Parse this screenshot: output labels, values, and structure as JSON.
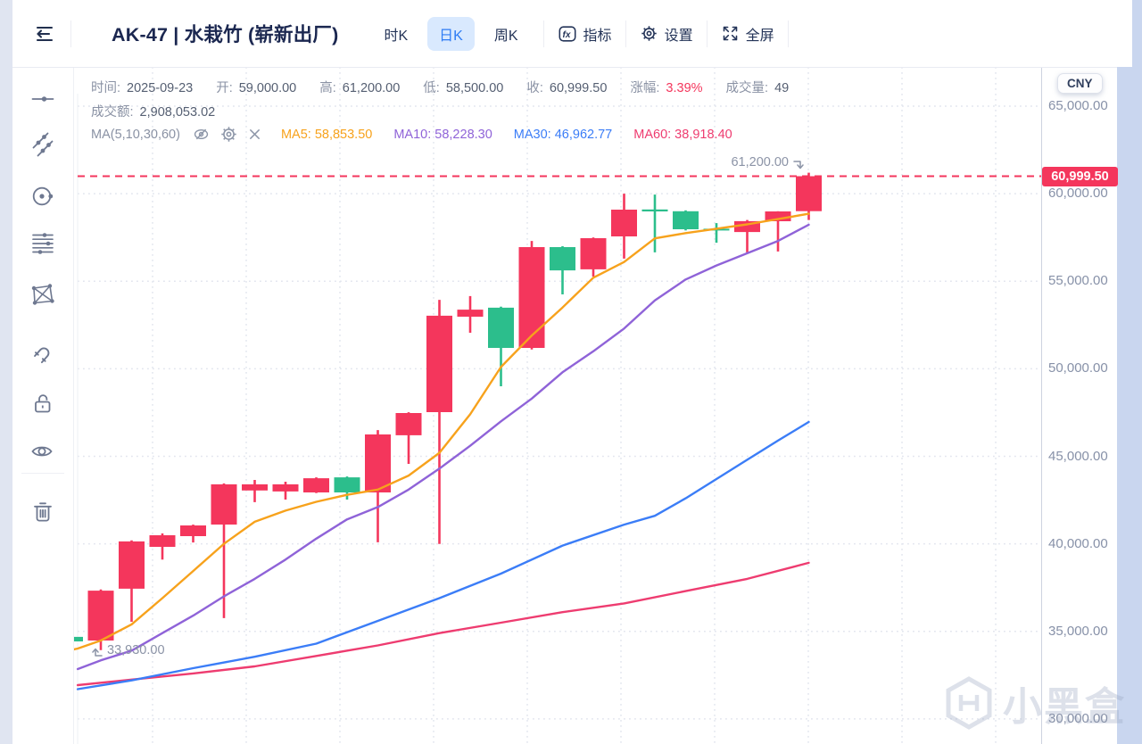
{
  "header": {
    "title": "AK-47 | 水栽竹 (崭新出厂)",
    "tabs": [
      {
        "name": "tab-hour-k",
        "label": "时K",
        "active": false
      },
      {
        "name": "tab-day-k",
        "label": "日K",
        "active": true
      },
      {
        "name": "tab-week-k",
        "label": "周K",
        "active": false
      }
    ],
    "actions": [
      {
        "name": "indicator-button",
        "icon": "fx-indicator-icon",
        "label": "指标"
      },
      {
        "name": "settings-button",
        "icon": "gear-icon",
        "label": "设置"
      },
      {
        "name": "fullscreen-button",
        "icon": "fullscreen-icon",
        "label": "全屏"
      }
    ]
  },
  "info_bar": {
    "row1": [
      {
        "label": "时间:",
        "value": "2025-09-23"
      },
      {
        "label": "开:",
        "value": "59,000.00"
      },
      {
        "label": "高:",
        "value": "61,200.00"
      },
      {
        "label": "低:",
        "value": "58,500.00"
      },
      {
        "label": "收:",
        "value": "60,999.50"
      },
      {
        "label": "涨幅:",
        "value": "3.39%",
        "color": "#f4365c"
      },
      {
        "label": "成交量:",
        "value": "49"
      }
    ],
    "row2": [
      {
        "label": "成交额:",
        "value": "2,908,053.02"
      }
    ]
  },
  "ma_bar": {
    "label": "MA(5,10,30,60)",
    "icons": [
      "eye-off-icon",
      "gear-icon",
      "close-icon"
    ],
    "items": [
      {
        "label": "MA5:",
        "value": "58,853.50",
        "color": "#f7a21c"
      },
      {
        "label": "MA10:",
        "value": "58,228.30",
        "color": "#8f63d8"
      },
      {
        "label": "MA30:",
        "value": "46,962.77",
        "color": "#3b7df7"
      },
      {
        "label": "MA60:",
        "value": "38,918.40",
        "color": "#ee3c70"
      }
    ]
  },
  "sidebar": {
    "tools": [
      "horizontal-line-tool",
      "cross-line-tool",
      "circle-tool",
      "fib-retracement-tool",
      "xabcd-pattern-tool",
      "magnet-tool",
      "unlock-tool",
      "visibility-tool",
      "delete-tool"
    ]
  },
  "axis": {
    "currency_label": "CNY",
    "price_tag": {
      "label": "60,999.50",
      "color": "#f4365c"
    }
  },
  "annotations": {
    "high_label": "61,200.00",
    "low_label": "33,930.00"
  },
  "watermark_text": "小黑盒",
  "chart_data": {
    "type": "candlestick",
    "title": "AK-47 | 水栽竹 (崭新出厂)",
    "interval": "日K",
    "currency": "CNY",
    "up_color": "#f4365c",
    "down_color": "#2cbe8c",
    "ylim": [
      28800,
      67200
    ],
    "grid": true,
    "y_ticks": [
      {
        "value": 65000,
        "label": "65,000.00"
      },
      {
        "value": 60000,
        "label": "60,000.00"
      },
      {
        "value": 55000,
        "label": "55,000.00"
      },
      {
        "value": 50000,
        "label": "50,000.00"
      },
      {
        "value": 45000,
        "label": "45,000.00"
      },
      {
        "value": 40000,
        "label": "40,000.00"
      },
      {
        "value": 35000,
        "label": "35,000.00"
      },
      {
        "value": 30000,
        "label": "30,000.00"
      }
    ],
    "current_price": 60999.5,
    "high_marker": 61200,
    "low_marker": 33930,
    "last_ohlc": {
      "date": "2025-09-23",
      "open": 59000,
      "high": 61200,
      "low": 58500,
      "close": 60999.5,
      "change_pct": "3.39%",
      "volume": 49,
      "turnover": "2,908,053.02"
    },
    "start_index": -1,
    "candles": [
      [
        34690,
        34700,
        34400,
        34430
      ],
      [
        34480,
        37400,
        33930,
        37330
      ],
      [
        37440,
        40200,
        35550,
        40140
      ],
      [
        39830,
        40600,
        39100,
        40490
      ],
      [
        40440,
        41100,
        40080,
        41050
      ],
      [
        41100,
        43450,
        35760,
        43400
      ],
      [
        43050,
        43650,
        42380,
        43400
      ],
      [
        42990,
        43550,
        42530,
        43400
      ],
      [
        42940,
        43800,
        42900,
        43750
      ],
      [
        43800,
        43850,
        42530,
        42940
      ],
      [
        42940,
        46500,
        40090,
        46250
      ],
      [
        46200,
        47520,
        44570,
        47470
      ],
      [
        47520,
        53940,
        39990,
        53030
      ],
      [
        52980,
        54150,
        52060,
        53380
      ],
      [
        53490,
        53550,
        49000,
        51190
      ],
      [
        51190,
        57300,
        51100,
        56950
      ],
      [
        56950,
        57000,
        54250,
        55620
      ],
      [
        55680,
        57500,
        55270,
        57460
      ],
      [
        57560,
        60000,
        56290,
        59090
      ],
      [
        59100,
        59950,
        56650,
        58990
      ],
      [
        59000,
        59050,
        57900,
        57970
      ],
      [
        58000,
        58320,
        57200,
        57960
      ],
      [
        57810,
        58500,
        56650,
        58430
      ],
      [
        58430,
        59000,
        56700,
        58990
      ],
      [
        59000,
        61200,
        58500,
        60999.5
      ]
    ],
    "ma_series": [
      {
        "name": "MA5",
        "value": 58853.5,
        "color": "#f7a21c",
        "points": [
          [
            -1.3,
            33800
          ],
          [
            -0.75,
            34020
          ],
          [
            0,
            34480
          ],
          [
            1,
            35400
          ],
          [
            2,
            36900
          ],
          [
            3,
            38450
          ],
          [
            4,
            40000
          ],
          [
            5,
            41260
          ],
          [
            6,
            41900
          ],
          [
            7,
            42400
          ],
          [
            8,
            42800
          ],
          [
            9,
            43100
          ],
          [
            10,
            43900
          ],
          [
            11,
            45200
          ],
          [
            12,
            47400
          ],
          [
            13,
            50100
          ],
          [
            14,
            51900
          ],
          [
            15,
            53500
          ],
          [
            16,
            55200
          ],
          [
            17,
            56100
          ],
          [
            18,
            57450
          ],
          [
            19,
            57750
          ],
          [
            20,
            58000
          ],
          [
            21,
            58250
          ],
          [
            22,
            58550
          ],
          [
            23,
            58853.5
          ]
        ]
      },
      {
        "name": "MA10",
        "value": 58228.3,
        "color": "#8f63d8",
        "points": [
          [
            -0.75,
            32850
          ],
          [
            0,
            33350
          ],
          [
            1,
            33900
          ],
          [
            2,
            34900
          ],
          [
            3,
            35900
          ],
          [
            4,
            37000
          ],
          [
            5,
            38000
          ],
          [
            6,
            39100
          ],
          [
            7,
            40300
          ],
          [
            8,
            41400
          ],
          [
            9,
            42100
          ],
          [
            10,
            43100
          ],
          [
            11,
            44300
          ],
          [
            12,
            45600
          ],
          [
            13,
            47000
          ],
          [
            14,
            48300
          ],
          [
            15,
            49800
          ],
          [
            16,
            51000
          ],
          [
            17,
            52300
          ],
          [
            18,
            53900
          ],
          [
            19,
            55100
          ],
          [
            20,
            55900
          ],
          [
            21,
            56600
          ],
          [
            22,
            57300
          ],
          [
            23,
            58228.3
          ]
        ]
      },
      {
        "name": "MA30",
        "value": 46962.77,
        "color": "#3b7df7",
        "points": [
          [
            -0.75,
            31700
          ],
          [
            1,
            32200
          ],
          [
            3,
            32900
          ],
          [
            5,
            33550
          ],
          [
            7,
            34300
          ],
          [
            9,
            35600
          ],
          [
            11,
            36900
          ],
          [
            13,
            38300
          ],
          [
            15,
            39900
          ],
          [
            17,
            41100
          ],
          [
            18,
            41600
          ],
          [
            19,
            42600
          ],
          [
            20,
            43700
          ],
          [
            21,
            44800
          ],
          [
            22,
            45900
          ],
          [
            23,
            46962.77
          ]
        ]
      },
      {
        "name": "MA60",
        "value": 38918.4,
        "color": "#ee3c70",
        "points": [
          [
            -0.75,
            31930
          ],
          [
            1,
            32250
          ],
          [
            3,
            32600
          ],
          [
            5,
            33000
          ],
          [
            7,
            33600
          ],
          [
            9,
            34200
          ],
          [
            11,
            34900
          ],
          [
            13,
            35500
          ],
          [
            15,
            36100
          ],
          [
            17,
            36600
          ],
          [
            19,
            37300
          ],
          [
            21,
            38000
          ],
          [
            23,
            38918.4
          ]
        ]
      }
    ]
  }
}
